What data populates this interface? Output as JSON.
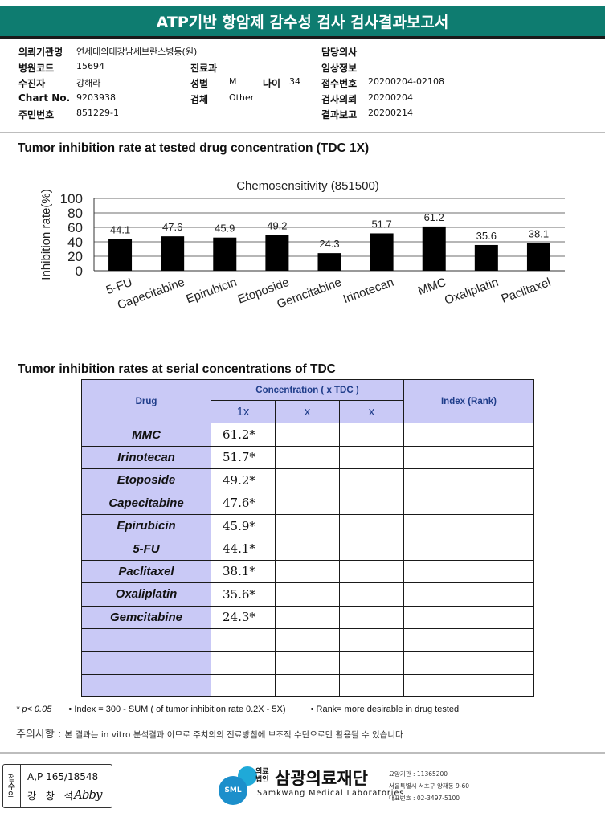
{
  "header": {
    "title": "ATP기반 항암제 감수성 검사 검사결과보고서"
  },
  "info": {
    "institution_label": "의뢰기관명",
    "institution_value": "연세대의대강남세브란스병동(원)",
    "hospital_code_label": "병원코드",
    "hospital_code_value": "15694",
    "patient_label": "수진자",
    "patient_value": "강해라",
    "chart_label": "Chart No.",
    "chart_value": "9203938",
    "resident_label": "주민번호",
    "resident_value": "851229-1",
    "dept_label": "진료과",
    "dept_value": "",
    "sex_label": "성별",
    "sex_value": "M",
    "age_label": "나이",
    "age_value": "34",
    "specimen_label": "검체",
    "specimen_value": "Other",
    "doctor_label": "담당의사",
    "doctor_value": "",
    "clinical_label": "임상정보",
    "clinical_value": "",
    "receipt_label": "접수번호",
    "receipt_value": "20200204-02108",
    "request_label": "검사의뢰",
    "request_value": "20200204",
    "report_label": "결과보고",
    "report_value": "20200214"
  },
  "section1_title": "Tumor inhibition rate at tested drug concentration (TDC 1X)",
  "chart_data": {
    "type": "bar",
    "title": "Chemosensitivity (851500)",
    "ylabel": "Inhibition rate(%)",
    "xlabel": "",
    "ylim": [
      0,
      100
    ],
    "yticks": [
      "100",
      "80",
      "60",
      "40",
      "20",
      "0"
    ],
    "categories": [
      "5-FU",
      "Capecitabine",
      "Epirubicin",
      "Etoposide",
      "Gemcitabine",
      "Irinotecan",
      "MMC",
      "Oxaliplatin",
      "Paclitaxel"
    ],
    "values": [
      44.1,
      47.6,
      45.9,
      49.2,
      24.3,
      51.7,
      61.2,
      35.6,
      38.1
    ],
    "value_labels": [
      "44.1",
      "47.6",
      "45.9",
      "49.2",
      "24.3",
      "51.7",
      "61.2",
      "35.6",
      "38.1"
    ],
    "bar_color": "#000000",
    "grid": true
  },
  "section2_title": "Tumor inhibition rates at serial concentrations of TDC",
  "table": {
    "drug_header": "Drug",
    "conc_header": "Concentration ( x TDC )",
    "index_header": "Index (Rank)",
    "sub_headers": [
      "1x",
      "x",
      "x"
    ],
    "rows": [
      {
        "drug": "MMC",
        "v1": "61.2*"
      },
      {
        "drug": "Irinotecan",
        "v1": "51.7*"
      },
      {
        "drug": "Etoposide",
        "v1": "49.2*"
      },
      {
        "drug": "Capecitabine",
        "v1": "47.6*"
      },
      {
        "drug": "Epirubicin",
        "v1": "45.9*"
      },
      {
        "drug": "5-FU",
        "v1": "44.1*"
      },
      {
        "drug": "Paclitaxel",
        "v1": "38.1*"
      },
      {
        "drug": "Oxaliplatin",
        "v1": "35.6*"
      },
      {
        "drug": "Gemcitabine",
        "v1": "24.3*"
      },
      {
        "drug": "",
        "v1": ""
      },
      {
        "drug": "",
        "v1": ""
      },
      {
        "drug": "",
        "v1": ""
      }
    ]
  },
  "footnotes": {
    "p_value": "* p< 0.05",
    "index_def": "• Index = 300 - SUM ( of tumor inhibition rate 0.2X  -  5X)",
    "rank_def": "• Rank= more desirable in drug tested"
  },
  "notice": {
    "label": "주의사항 :",
    "text": "본 결과는 in vitro 분석결과 이므로 주치의의 진료방침에 보조적 수단으로만 활용될 수 있습니다"
  },
  "signature": {
    "vertical_label": "접수의",
    "license": "A,P 165/18548",
    "name": "강 창 석",
    "sign": "Abby"
  },
  "lab": {
    "corp": "의료법인",
    "name": "삼광의료재단",
    "english": "Samkwang Medical Laboratories",
    "badge": "SML",
    "code_line": "요양기관 : 11365200",
    "address": "서울특별시 서초구 양재동 9-60",
    "phone": "대표번호 : 02-3497-5100"
  }
}
